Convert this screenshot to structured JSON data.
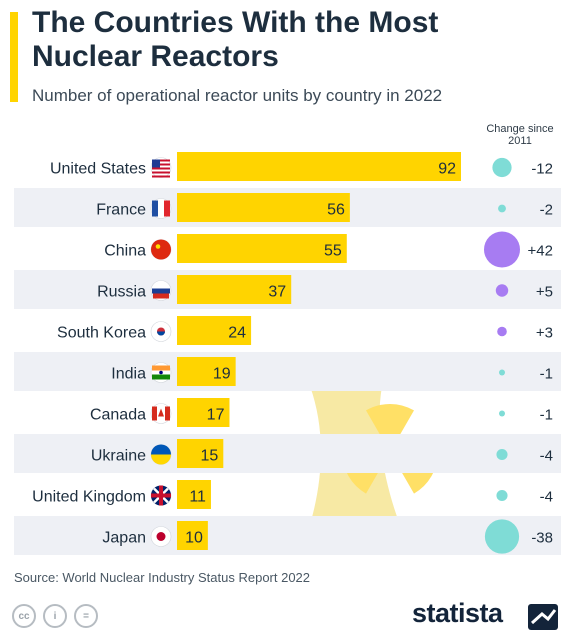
{
  "header": {
    "title": "The Countries With the Most Nuclear Reactors",
    "subtitle": "Number of operational reactor units by country in 2022",
    "change_label": "Change since 2011"
  },
  "chart_data": {
    "type": "bar",
    "orientation": "horizontal",
    "title": "The Countries With the Most Nuclear Reactors",
    "subtitle": "Number of operational reactor units by country in 2022",
    "categories": [
      "United States",
      "France",
      "China",
      "Russia",
      "South Korea",
      "India",
      "Canada",
      "Ukraine",
      "United Kingdom",
      "Japan"
    ],
    "values": [
      92,
      56,
      55,
      37,
      24,
      19,
      17,
      15,
      11,
      10
    ],
    "change_label": "Change since 2011",
    "change": [
      "-12",
      "-2",
      "+42",
      "+5",
      "+3",
      "-1",
      "-1",
      "-4",
      "-4",
      "-38"
    ],
    "change_values": [
      -12,
      -2,
      42,
      5,
      3,
      -1,
      -1,
      -4,
      -4,
      -38
    ],
    "flags": [
      "us-flag-icon",
      "france-flag-icon",
      "china-flag-icon",
      "russia-flag-icon",
      "south-korea-flag-icon",
      "india-flag-icon",
      "canada-flag-icon",
      "ukraine-flag-icon",
      "uk-flag-icon",
      "japan-flag-icon"
    ],
    "legend": "none",
    "grid": false
  },
  "colors": {
    "bar": "#ffd400",
    "row_band": "#eef0f5",
    "decrease": "#7fdcd6",
    "increase": "#a77cf2",
    "text": "#1d2e3e"
  },
  "footer": {
    "source": "Source: World Nuclear Industry Status Report 2022",
    "brand": "statista",
    "license_icons": [
      "cc-icon",
      "attribution-icon",
      "no-derivatives-icon"
    ]
  }
}
